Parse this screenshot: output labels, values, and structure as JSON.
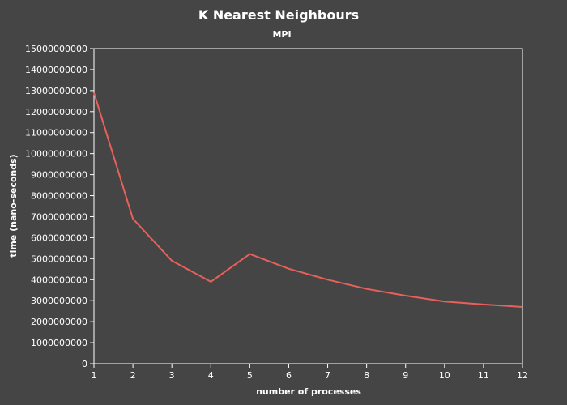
{
  "chart_data": {
    "type": "line",
    "title": "K Nearest Neighbours",
    "subtitle": "MPI",
    "xlabel": "number of processes",
    "ylabel": "time (nano-seconds)",
    "x": [
      1,
      2,
      3,
      4,
      5,
      6,
      7,
      8,
      9,
      10,
      11,
      12
    ],
    "x_tick_labels": [
      "1",
      "2",
      "3",
      "4",
      "5",
      "6",
      "7",
      "8",
      "9",
      "10",
      "11",
      "12"
    ],
    "xlim": [
      1,
      12
    ],
    "ylim": [
      0,
      15000000000
    ],
    "y_ticks": [
      0,
      1000000000,
      2000000000,
      3000000000,
      4000000000,
      5000000000,
      6000000000,
      7000000000,
      8000000000,
      9000000000,
      10000000000,
      11000000000,
      12000000000,
      13000000000,
      14000000000,
      15000000000
    ],
    "y_tick_labels": [
      "0",
      "1000000000",
      "2000000000",
      "3000000000",
      "4000000000",
      "5000000000",
      "6000000000",
      "7000000000",
      "8000000000",
      "9000000000",
      "10000000000",
      "11000000000",
      "12000000000",
      "13000000000",
      "14000000000",
      "15000000000"
    ],
    "series": [
      {
        "values": [
          12900000000,
          6900000000,
          4900000000,
          3900000000,
          5220000000,
          4520000000,
          4000000000,
          3560000000,
          3240000000,
          2960000000,
          2820000000,
          2700000000
        ],
        "color": "#e8605a"
      }
    ],
    "grid": false,
    "legend": "none",
    "colors": {
      "background": "#454545",
      "frame": "#ffffff",
      "text": "#ffffff"
    }
  }
}
